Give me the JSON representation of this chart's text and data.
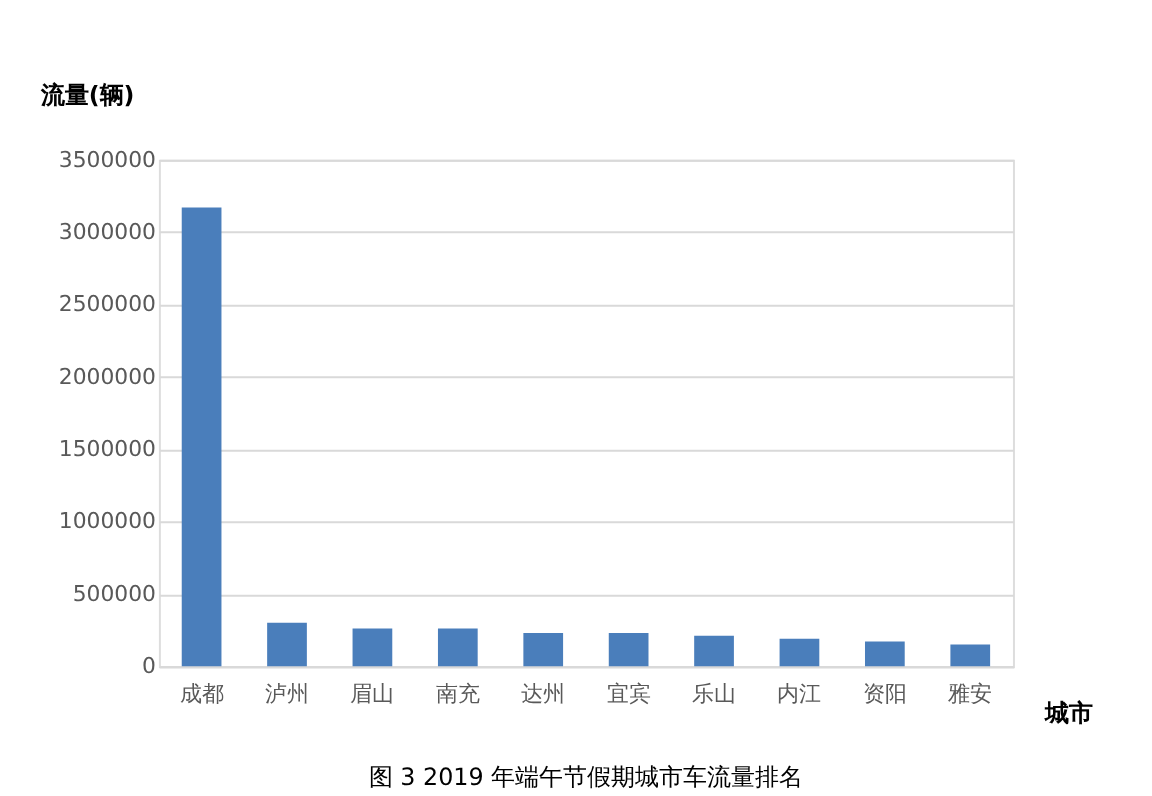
{
  "chart_data": {
    "type": "bar",
    "title": "图 3 2019 年端午节假期城市车流量排名",
    "xlabel": "城市",
    "ylabel": "流量(辆)",
    "categories": [
      "成都",
      "泸州",
      "眉山",
      "南充",
      "达州",
      "宜宾",
      "乐山",
      "内江",
      "资阳",
      "雅安"
    ],
    "values": [
      3170000,
      300000,
      260000,
      260000,
      230000,
      230000,
      210000,
      190000,
      170000,
      150000
    ],
    "color": "#4a7ebb",
    "ylim": [
      0,
      3500000
    ],
    "yticks": [
      0,
      500000,
      1000000,
      1500000,
      2000000,
      2500000,
      3000000,
      3500000
    ],
    "grid": "y",
    "legend": false
  }
}
